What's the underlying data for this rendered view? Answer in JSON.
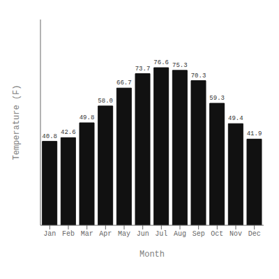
{
  "chart_data": {
    "type": "bar",
    "categories": [
      "Jan",
      "Feb",
      "Mar",
      "Apr",
      "May",
      "Jun",
      "Jul",
      "Aug",
      "Sep",
      "Oct",
      "Nov",
      "Dec"
    ],
    "values": [
      40.8,
      42.6,
      49.8,
      58.0,
      66.7,
      73.7,
      76.6,
      75.3,
      70.3,
      59.3,
      49.4,
      41.9
    ],
    "value_labels": [
      "40.8",
      "42.6",
      "49.8",
      "58.0",
      "66.7",
      "73.7",
      "76.6",
      "75.3",
      "70.3",
      "59.3",
      "49.4",
      "41.9"
    ],
    "color": "#111111",
    "xlabel": "Month",
    "ylabel": "Temperature (F)",
    "ylim": [
      0,
      100
    ],
    "yticks": [],
    "grid": false,
    "data_labels": true,
    "tick_labels": "x"
  }
}
